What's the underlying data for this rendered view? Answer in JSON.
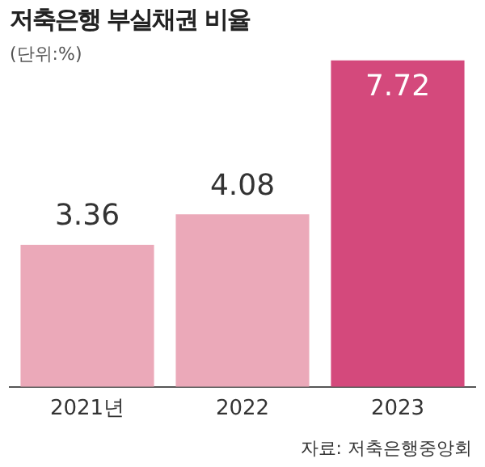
{
  "chart_data": {
    "type": "bar",
    "title": "저축은행 부실채권 비율",
    "subtitle": "(단위:%)",
    "categories": [
      "2021년",
      "2022",
      "2023"
    ],
    "values": [
      3.36,
      4.08,
      7.72
    ],
    "colors": [
      "#eba9b9",
      "#eba9b9",
      "#d4497c"
    ],
    "data_labels": true,
    "grid": false,
    "legend": false,
    "annotations": [
      "자료: 저축은행중앙회"
    ]
  }
}
